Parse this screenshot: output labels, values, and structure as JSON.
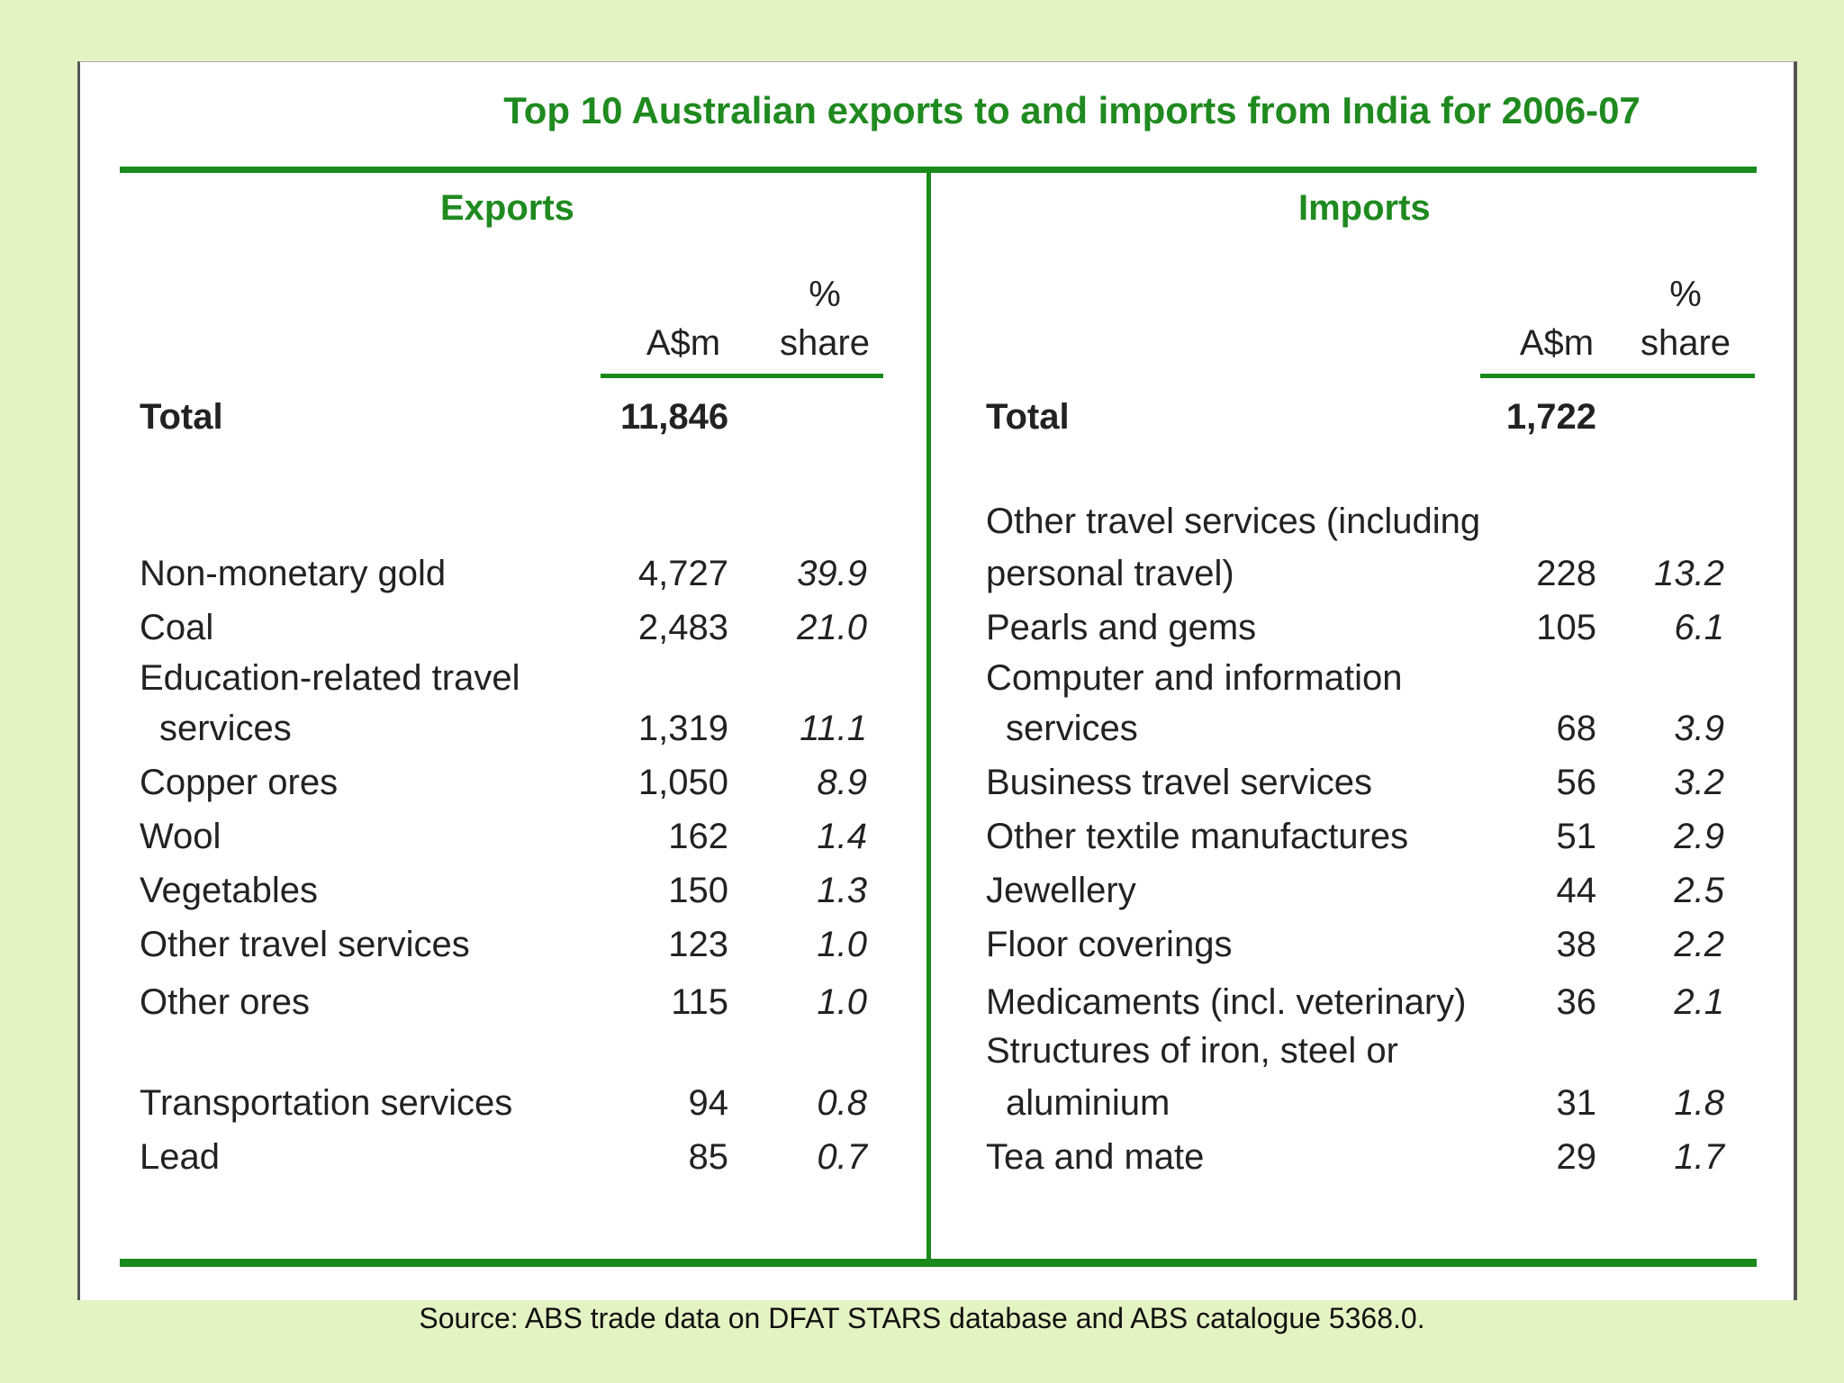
{
  "title": "Top 10 Australian exports to and imports from India for 2006-07",
  "exports": {
    "heading": "Exports",
    "col_value": "A$m",
    "col_pct_line1": "%",
    "col_pct_line2": "share",
    "total_label": "Total",
    "total_value": "11,846",
    "rows": [
      {
        "label_line1": "Non-monetary gold",
        "label_line2": "",
        "value": "4,727",
        "share": "39.9"
      },
      {
        "label_line1": "Coal",
        "label_line2": "",
        "value": "2,483",
        "share": "21.0"
      },
      {
        "label_line1": "Education-related travel",
        "label_line2": "services",
        "value": "1,319",
        "share": "11.1"
      },
      {
        "label_line1": "Copper ores",
        "label_line2": "",
        "value": "1,050",
        "share": "8.9"
      },
      {
        "label_line1": "Wool",
        "label_line2": "",
        "value": "162",
        "share": "1.4"
      },
      {
        "label_line1": "Vegetables",
        "label_line2": "",
        "value": "150",
        "share": "1.3"
      },
      {
        "label_line1": "Other travel services",
        "label_line2": "",
        "value": "123",
        "share": "1.0"
      },
      {
        "label_line1": "Other ores",
        "label_line2": "",
        "value": "115",
        "share": "1.0"
      },
      {
        "label_line1": "Transportation services",
        "label_line2": "",
        "value": "94",
        "share": "0.8"
      },
      {
        "label_line1": "Lead",
        "label_line2": "",
        "value": "85",
        "share": "0.7"
      }
    ]
  },
  "imports": {
    "heading": "Imports",
    "col_value": "A$m",
    "col_pct_line1": "%",
    "col_pct_line2": "share",
    "total_label": "Total",
    "total_value": "1,722",
    "rows": [
      {
        "label_line1": "Other travel services (including",
        "label_line2": "personal travel)",
        "value": "228",
        "share": "13.2"
      },
      {
        "label_line1": "Pearls and gems",
        "label_line2": "",
        "value": "105",
        "share": "6.1"
      },
      {
        "label_line1": "Computer and information",
        "label_line2": "services",
        "value": "68",
        "share": "3.9"
      },
      {
        "label_line1": "Business travel services",
        "label_line2": "",
        "value": "56",
        "share": "3.2"
      },
      {
        "label_line1": "Other textile manufactures",
        "label_line2": "",
        "value": "51",
        "share": "2.9"
      },
      {
        "label_line1": "Jewellery",
        "label_line2": "",
        "value": "44",
        "share": "2.5"
      },
      {
        "label_line1": "Floor coverings",
        "label_line2": "",
        "value": "38",
        "share": "2.2"
      },
      {
        "label_line1": "Medicaments (incl. veterinary)",
        "label_line2": "",
        "value": "36",
        "share": "2.1"
      },
      {
        "label_line1": "Structures of iron, steel or",
        "label_line2": "aluminium",
        "value": "31",
        "share": "1.8"
      },
      {
        "label_line1": "Tea and mate",
        "label_line2": "",
        "value": "29",
        "share": "1.7"
      }
    ]
  },
  "source": "Source: ABS trade data on DFAT STARS database and ABS catalogue 5368.0.",
  "colors": {
    "accent": "#1a8a1a",
    "background": "#e4f3c2"
  }
}
